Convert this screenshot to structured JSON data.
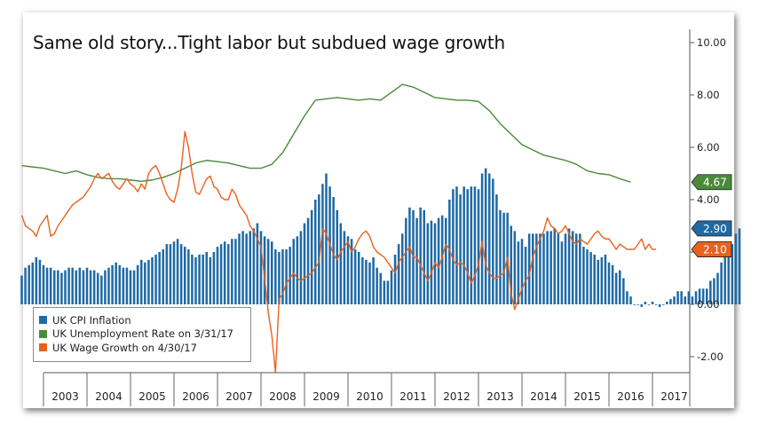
{
  "chart_data": {
    "type": "bar+line",
    "title": "Same old story...Tight labor but subdued wage growth",
    "x_categories": [
      "2003",
      "2004",
      "2005",
      "2006",
      "2007",
      "2008",
      "2009",
      "2010",
      "2011",
      "2012",
      "2013",
      "2014",
      "2015",
      "2016",
      "2017"
    ],
    "y_ticks": [
      "10.00",
      "8.00",
      "6.00",
      "4.00",
      "2.00",
      "0.00",
      "-2.00"
    ],
    "ylim": [
      -2.6,
      10.4
    ],
    "grid": false,
    "legend_position": "bottom-left",
    "last_value_tags": [
      {
        "series": "UK Unemployment Rate on 3/31/17",
        "label": "4.67",
        "value": 4.67,
        "color": "#4a8a3a"
      },
      {
        "series": "UK CPI Inflation",
        "label": "2.90",
        "value": 2.9,
        "color": "#1f6aa5"
      },
      {
        "series": "UK Wage Growth on 4/30/17",
        "label": "2.10",
        "value": 2.1,
        "color": "#e8621e"
      }
    ],
    "series": [
      {
        "name": "UK CPI Inflation",
        "type": "bar",
        "color": "#1f6aa5",
        "frequency": "monthly",
        "start": "2002-07",
        "values": [
          1.1,
          1.4,
          1.5,
          1.6,
          1.8,
          1.7,
          1.5,
          1.4,
          1.4,
          1.3,
          1.3,
          1.2,
          1.3,
          1.4,
          1.4,
          1.3,
          1.4,
          1.3,
          1.4,
          1.3,
          1.3,
          1.2,
          1.1,
          1.3,
          1.4,
          1.5,
          1.6,
          1.5,
          1.4,
          1.4,
          1.3,
          1.3,
          1.5,
          1.7,
          1.6,
          1.7,
          1.8,
          1.9,
          2.0,
          2.1,
          2.3,
          2.3,
          2.4,
          2.5,
          2.3,
          2.2,
          2.1,
          1.9,
          1.8,
          1.9,
          1.9,
          2.0,
          1.8,
          2.0,
          2.2,
          2.3,
          2.4,
          2.3,
          2.5,
          2.5,
          2.7,
          2.8,
          2.7,
          2.8,
          2.9,
          3.1,
          2.8,
          2.6,
          2.5,
          2.4,
          2.1,
          2.0,
          2.1,
          2.1,
          2.2,
          2.5,
          2.6,
          2.8,
          3.1,
          3.3,
          3.6,
          4.0,
          4.2,
          4.6,
          5.0,
          4.5,
          4.1,
          3.6,
          3.1,
          2.8,
          2.6,
          2.5,
          2.1,
          2.0,
          1.8,
          1.7,
          1.6,
          1.8,
          1.4,
          1.2,
          0.9,
          0.9,
          1.3,
          1.9,
          2.3,
          2.7,
          3.3,
          3.7,
          3.6,
          3.3,
          3.7,
          3.6,
          3.1,
          3.2,
          3.1,
          3.3,
          3.4,
          3.3,
          4.0,
          4.4,
          4.5,
          4.2,
          4.5,
          4.4,
          4.5,
          4.5,
          4.4,
          5.0,
          5.2,
          5.0,
          4.8,
          4.2,
          3.6,
          3.5,
          3.5,
          3.0,
          2.8,
          2.4,
          2.5,
          2.2,
          2.7,
          2.7,
          2.7,
          2.7,
          2.7,
          2.8,
          2.8,
          2.9,
          2.7,
          2.4,
          2.7,
          2.9,
          2.8,
          2.7,
          2.7,
          2.2,
          2.1,
          2.0,
          1.9,
          1.7,
          1.8,
          1.9,
          1.6,
          1.5,
          1.2,
          1.3,
          1.0,
          0.5,
          0.3,
          0.0,
          0.0,
          -0.1,
          0.1,
          0.0,
          0.1,
          0.0,
          -0.1,
          0.0,
          0.1,
          0.2,
          0.3,
          0.5,
          0.5,
          0.3,
          0.5,
          0.3,
          0.5,
          0.6,
          0.6,
          0.6,
          0.9,
          1.0,
          1.2,
          1.6,
          1.8,
          2.3,
          2.3,
          2.7,
          2.9
        ]
      },
      {
        "name": "UK Unemployment Rate on 3/31/17",
        "type": "line",
        "color": "#4a8a3a",
        "frequency": "quarterly",
        "start": "2002-07",
        "values": [
          5.3,
          5.25,
          5.2,
          5.1,
          5.0,
          5.1,
          4.95,
          4.85,
          4.8,
          4.8,
          4.75,
          4.7,
          4.75,
          4.85,
          5.0,
          5.2,
          5.4,
          5.5,
          5.45,
          5.4,
          5.3,
          5.2,
          5.2,
          5.35,
          5.8,
          6.5,
          7.2,
          7.8,
          7.85,
          7.9,
          7.85,
          7.8,
          7.85,
          7.8,
          8.1,
          8.4,
          8.3,
          8.1,
          7.9,
          7.85,
          7.8,
          7.8,
          7.75,
          7.4,
          6.9,
          6.5,
          6.1,
          5.9,
          5.7,
          5.6,
          5.5,
          5.35,
          5.1,
          5.0,
          4.95,
          4.8,
          4.67
        ]
      },
      {
        "name": "UK Wage Growth on 4/30/17",
        "type": "line",
        "color": "#e8621e",
        "frequency": "monthly",
        "start": "2002-07",
        "values": [
          3.4,
          3.0,
          2.9,
          2.8,
          2.6,
          3.0,
          3.2,
          3.4,
          2.6,
          2.7,
          3.0,
          3.2,
          3.4,
          3.6,
          3.8,
          3.9,
          4.0,
          4.1,
          4.3,
          4.5,
          4.8,
          5.0,
          4.8,
          4.9,
          5.0,
          4.7,
          4.5,
          4.4,
          4.6,
          4.8,
          4.6,
          4.5,
          4.3,
          4.6,
          4.4,
          5.0,
          5.2,
          5.3,
          5.0,
          4.6,
          4.2,
          4.0,
          3.9,
          4.4,
          5.2,
          6.6,
          6.0,
          5.0,
          4.3,
          4.2,
          4.5,
          4.8,
          4.9,
          4.5,
          4.4,
          4.1,
          4.0,
          4.0,
          4.4,
          4.2,
          3.8,
          3.6,
          3.4,
          3.0,
          2.8,
          2.5,
          2.2,
          1.0,
          -0.3,
          -1.2,
          -2.6,
          0.2,
          0.4,
          0.8,
          1.0,
          1.2,
          1.0,
          0.9,
          1.0,
          1.1,
          1.2,
          1.4,
          1.6,
          2.9,
          2.7,
          2.3,
          1.9,
          1.7,
          2.0,
          2.2,
          2.4,
          2.0,
          2.2,
          2.5,
          2.7,
          2.8,
          2.6,
          2.2,
          2.0,
          1.9,
          1.8,
          1.6,
          1.4,
          1.2,
          1.6,
          1.8,
          2.0,
          2.2,
          1.8,
          1.8,
          1.5,
          1.2,
          0.9,
          1.2,
          1.6,
          1.4,
          1.8,
          2.3,
          2.1,
          1.7,
          1.5,
          1.6,
          1.5,
          1.2,
          0.8,
          1.1,
          1.5,
          2.4,
          1.5,
          1.2,
          1.0,
          1.0,
          1.1,
          1.2,
          1.8,
          0.4,
          -0.2,
          0.2,
          0.6,
          0.9,
          1.1,
          1.8,
          2.2,
          2.5,
          2.8,
          3.3,
          3.0,
          2.9,
          2.7,
          2.8,
          3.0,
          2.7,
          2.4,
          2.3,
          2.5,
          2.4,
          2.3,
          2.5,
          2.7,
          2.8,
          2.6,
          2.5,
          2.5,
          2.3,
          2.1,
          2.3,
          2.2,
          2.1,
          2.1,
          2.1,
          2.3,
          2.5,
          2.1,
          2.3,
          2.1,
          2.1
        ]
      }
    ]
  }
}
